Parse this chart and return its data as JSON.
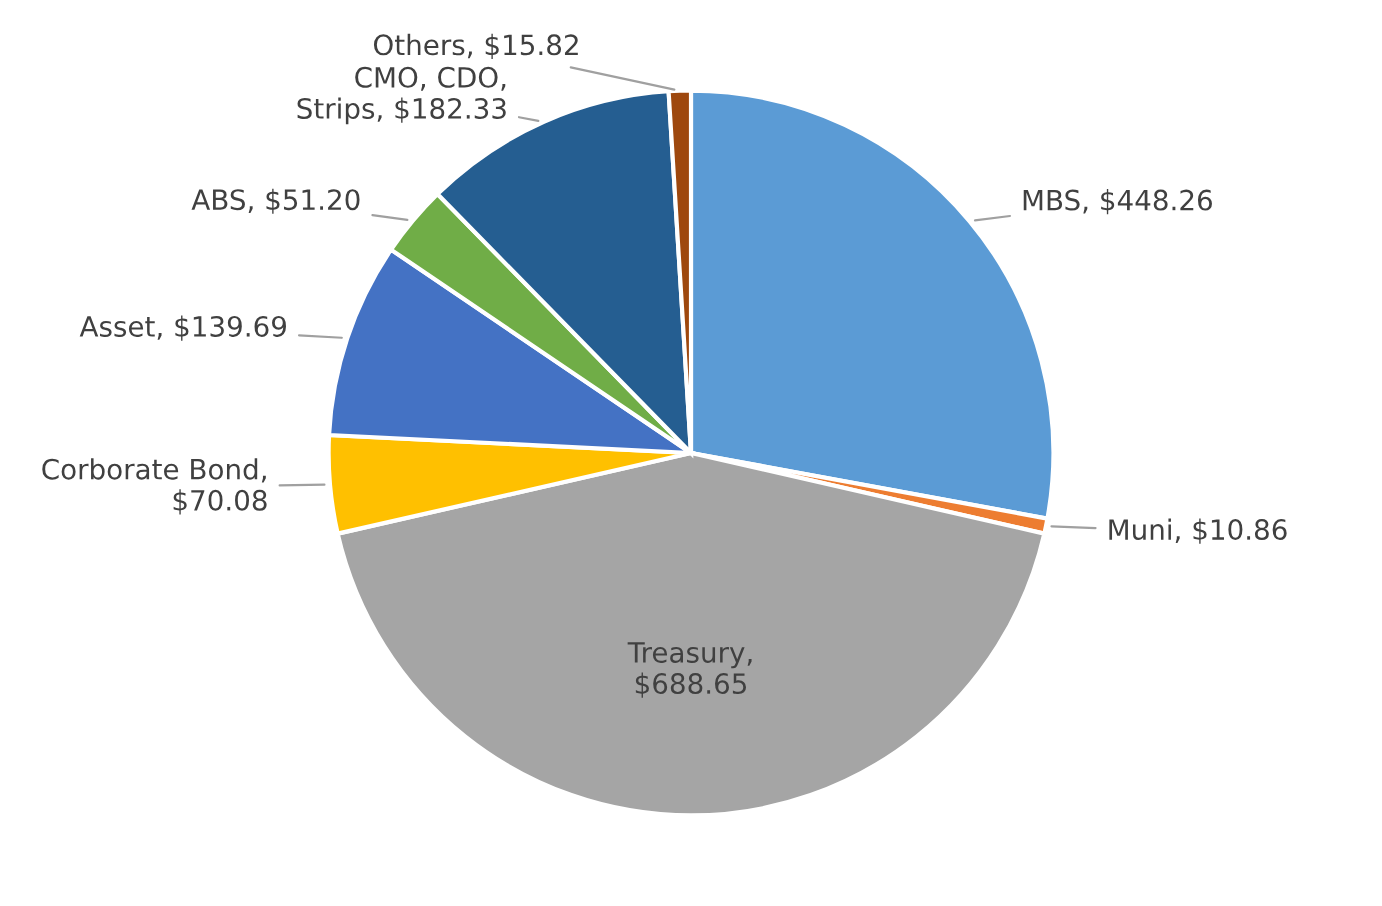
{
  "chart_data": {
    "type": "pie",
    "categories": [
      "MBS",
      "Muni",
      "Treasury",
      "Corborate Bond",
      "Asset",
      "ABS",
      "CMO, CDO, Strips",
      "Others"
    ],
    "values": [
      448.26,
      10.86,
      688.65,
      70.08,
      139.69,
      51.2,
      182.33,
      15.82
    ],
    "value_labels": [
      ", $448.26",
      ", $10.86",
      ", $688.65",
      ", $70.08",
      ", $139.69",
      ", $51.20",
      ", $182.33",
      ", $15.82"
    ],
    "colors": [
      "#5b9bd5",
      "#ed7d31",
      "#a5a5a5",
      "#ffc000",
      "#4472c4",
      "#70ad47",
      "#255e91",
      "#9e480e"
    ],
    "legend": false
  }
}
